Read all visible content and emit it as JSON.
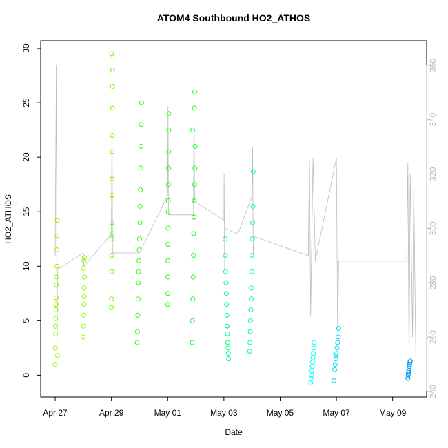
{
  "chart_data": {
    "type": "scatter",
    "title": "ATOM4 Southbound HO2_ATHOS",
    "xlabel": "Date",
    "ylabel": "HO2_ATHOS",
    "xlim": [
      "04-26 11:38",
      "05-10 05:00"
    ],
    "xticks": [
      {
        "value": "04-27 00:00",
        "label": "Apr 27"
      },
      {
        "value": "04-29 00:00",
        "label": "Apr 29"
      },
      {
        "value": "05-01 00:00",
        "label": "May 01"
      },
      {
        "value": "05-03 00:00",
        "label": "May 03"
      },
      {
        "value": "05-05 00:00",
        "label": "May 05"
      },
      {
        "value": "05-07 00:00",
        "label": "May 07"
      },
      {
        "value": "05-09 00:00",
        "label": "May 09"
      }
    ],
    "ylim": [
      -2.0,
      30.7
    ],
    "yticks": [
      0,
      5,
      10,
      15,
      20,
      25,
      30
    ],
    "y2lim": [
      238,
      369.1
    ],
    "y2ticks": [
      240,
      260,
      280,
      300,
      320,
      340,
      360
    ],
    "y2color": "#bbbbbb",
    "series": [
      {
        "color": "#99ee00",
        "x": [
          "04-27 00:00",
          "04-27 00:10",
          "04-27 00:20",
          "04-27 00:30",
          "04-27 00:40",
          "04-27 00:50",
          "04-27 01:00",
          "04-27 01:10",
          "04-27 01:20",
          "04-27 01:30",
          "04-27 01:40",
          "04-27 01:50",
          "04-27 02:00",
          "04-27 00:15",
          "04-27 00:45"
        ],
        "values": [
          1.0,
          2.5,
          3.8,
          5.2,
          6.0,
          7.1,
          8.3,
          9.0,
          10.0,
          11.5,
          12.8,
          14.2,
          1.8,
          4.5,
          6.5
        ]
      },
      {
        "color": "#88ff00",
        "x": [
          "04-28 00:00",
          "04-28 00:10",
          "04-28 00:20",
          "04-28 00:30",
          "04-28 00:40",
          "04-28 00:50",
          "04-28 01:00",
          "04-28 00:05",
          "04-28 00:35",
          "04-28 00:55"
        ],
        "values": [
          3.5,
          4.5,
          5.5,
          6.5,
          7.2,
          8.0,
          9.0,
          9.8,
          10.5,
          10.8
        ]
      },
      {
        "color": "#55ff00",
        "x": [
          "04-29 00:00",
          "04-29 00:05",
          "04-29 00:10",
          "04-29 00:15",
          "04-29 00:20",
          "04-29 00:25",
          "04-29 00:30",
          "04-29 00:35",
          "04-29 00:40",
          "04-29 00:45",
          "04-29 00:50",
          "04-29 00:55",
          "04-29 01:00",
          "04-29 00:12",
          "04-29 00:42"
        ],
        "values": [
          6.2,
          7.0,
          9.5,
          11.0,
          12.5,
          14.0,
          16.5,
          18.0,
          20.5,
          22.0,
          24.5,
          26.5,
          28.0,
          29.5,
          13.0
        ]
      },
      {
        "color": "#33ff00",
        "x": [
          "04-29 22:00",
          "04-29 22:15",
          "04-29 22:30",
          "04-29 22:45",
          "04-29 23:00",
          "04-29 23:15",
          "04-29 23:30",
          "04-29 23:45",
          "04-30 00:00",
          "04-30 00:15",
          "04-30 00:30",
          "04-30 00:45",
          "04-30 01:00",
          "04-30 01:15",
          "04-30 01:30",
          "04-30 01:45"
        ],
        "values": [
          3.0,
          4.0,
          5.5,
          7.0,
          8.5,
          9.5,
          10.5,
          11.5,
          12.5,
          14.0,
          15.5,
          17.0,
          19.0,
          21.0,
          23.0,
          25.0
        ]
      },
      {
        "color": "#22ff00",
        "x": [
          "05-01 00:00",
          "05-01 00:05",
          "05-01 00:10",
          "05-01 00:15",
          "05-01 00:20",
          "05-01 00:25",
          "05-01 00:30",
          "05-01 00:35",
          "05-01 00:40",
          "05-01 00:45",
          "05-01 00:50",
          "05-01 00:55",
          "05-01 01:00"
        ],
        "values": [
          6.5,
          7.5,
          9.0,
          10.5,
          12.0,
          13.5,
          15.0,
          16.0,
          17.5,
          19.0,
          20.5,
          22.5,
          24.0
        ]
      },
      {
        "color": "#11ff22",
        "x": [
          "05-01 21:00",
          "05-01 21:15",
          "05-01 21:30",
          "05-01 21:45",
          "05-01 22:00",
          "05-01 22:15",
          "05-01 22:30",
          "05-01 22:45",
          "05-01 23:00",
          "05-01 23:15",
          "05-01 23:30",
          "05-01 21:20",
          "05-01 22:50",
          "05-01 23:05"
        ],
        "values": [
          3.0,
          5.0,
          7.0,
          9.0,
          11.0,
          13.0,
          14.5,
          16.0,
          17.5,
          19.0,
          21.0,
          22.5,
          24.5,
          26.0
        ]
      },
      {
        "color": "#00ff88",
        "x": [
          "05-03 01:00",
          "05-03 01:15",
          "05-03 01:30",
          "05-03 01:45",
          "05-03 02:00",
          "05-03 02:15",
          "05-03 02:30",
          "05-03 02:45",
          "05-03 03:00",
          "05-03 03:15",
          "05-03 03:30",
          "05-03 03:45",
          "05-03 04:00"
        ],
        "values": [
          12.5,
          11.0,
          9.5,
          8.5,
          7.5,
          6.5,
          5.5,
          4.5,
          3.8,
          3.0,
          2.5,
          2.0,
          1.5
        ]
      },
      {
        "color": "#00ffaa",
        "x": [
          "05-03 22:00",
          "05-03 22:15",
          "05-03 22:30",
          "05-03 22:45",
          "05-03 23:00",
          "05-03 23:15",
          "05-03 23:30",
          "05-03 23:45",
          "05-04 00:00",
          "05-04 00:15",
          "05-04 00:30",
          "05-04 00:45",
          "05-04 01:00"
        ],
        "values": [
          2.2,
          3.0,
          4.0,
          5.0,
          6.0,
          7.0,
          8.0,
          9.5,
          11.0,
          12.5,
          14.0,
          15.5,
          18.7
        ]
      },
      {
        "color": "#00ffff",
        "x": [
          "05-06 02:00",
          "05-06 02:20",
          "05-06 02:40",
          "05-06 03:00",
          "05-06 03:20",
          "05-06 03:40",
          "05-06 04:00",
          "05-06 04:20",
          "05-06 04:40",
          "05-06 05:00"
        ],
        "values": [
          -0.7,
          -0.3,
          0.0,
          0.4,
          0.8,
          1.2,
          1.6,
          2.0,
          2.5,
          3.0
        ]
      },
      {
        "color": "#00ddff",
        "x": [
          "05-06 22:00",
          "05-06 22:30",
          "05-06 23:00",
          "05-06 23:30",
          "05-07 00:00",
          "05-07 00:30",
          "05-07 01:00",
          "05-07 01:30",
          "05-07 02:00",
          "05-06 23:15"
        ],
        "values": [
          -0.5,
          0.5,
          1.0,
          1.5,
          2.0,
          2.5,
          3.0,
          3.5,
          4.3,
          1.8
        ]
      },
      {
        "color": "#0099ee",
        "x": [
          "05-09 13:00",
          "05-09 13:15",
          "05-09 13:30",
          "05-09 13:45",
          "05-09 14:00",
          "05-09 14:15",
          "05-09 14:30",
          "05-09 14:45",
          "05-09 15:00"
        ],
        "values": [
          -0.3,
          0.0,
          0.2,
          0.4,
          0.6,
          0.8,
          1.0,
          1.2,
          1.3
        ]
      },
      {
        "type": "line",
        "axis": "y2",
        "color": "#bbbbbb",
        "x": [
          "04-27 00:00",
          "04-27 01:00",
          "04-27 01:30",
          "04-27 02:00",
          "04-28 00:00",
          "04-28 00:30",
          "04-29 00:00",
          "04-29 00:30",
          "04-29 01:00",
          "04-30 00:00",
          "05-01 00:00",
          "05-01 00:20",
          "05-01 00:40",
          "05-01 22:00",
          "05-01 22:30",
          "05-01 23:00",
          "05-03 00:00",
          "05-03 00:10",
          "05-03 00:40",
          "05-03 01:00",
          "05-03 12:00",
          "05-04 00:00",
          "05-04 00:30",
          "05-04 01:00",
          "05-04 02:00",
          "05-06 00:00",
          "05-06 01:00",
          "05-06 02:00",
          "05-06 04:00",
          "05-06 06:00",
          "05-07 00:00",
          "05-07 01:00",
          "05-07 02:00",
          "05-09 12:00",
          "05-09 13:00",
          "05-09 14:00",
          "05-09 15:00",
          "05-09 17:00",
          "05-09 18:00",
          "05-09 20:00"
        ],
        "values": [
          290,
          360,
          255,
          285,
          291,
          286,
          298,
          340,
          291,
          291,
          312,
          345,
          305,
          305,
          343,
          310,
          303,
          320,
          285,
          300,
          298,
          312,
          330,
          290,
          297,
          290,
          325,
          268,
          326,
          288,
          326,
          262,
          288,
          288,
          324,
          250,
          320,
          260,
          315,
          246
        ]
      }
    ]
  }
}
